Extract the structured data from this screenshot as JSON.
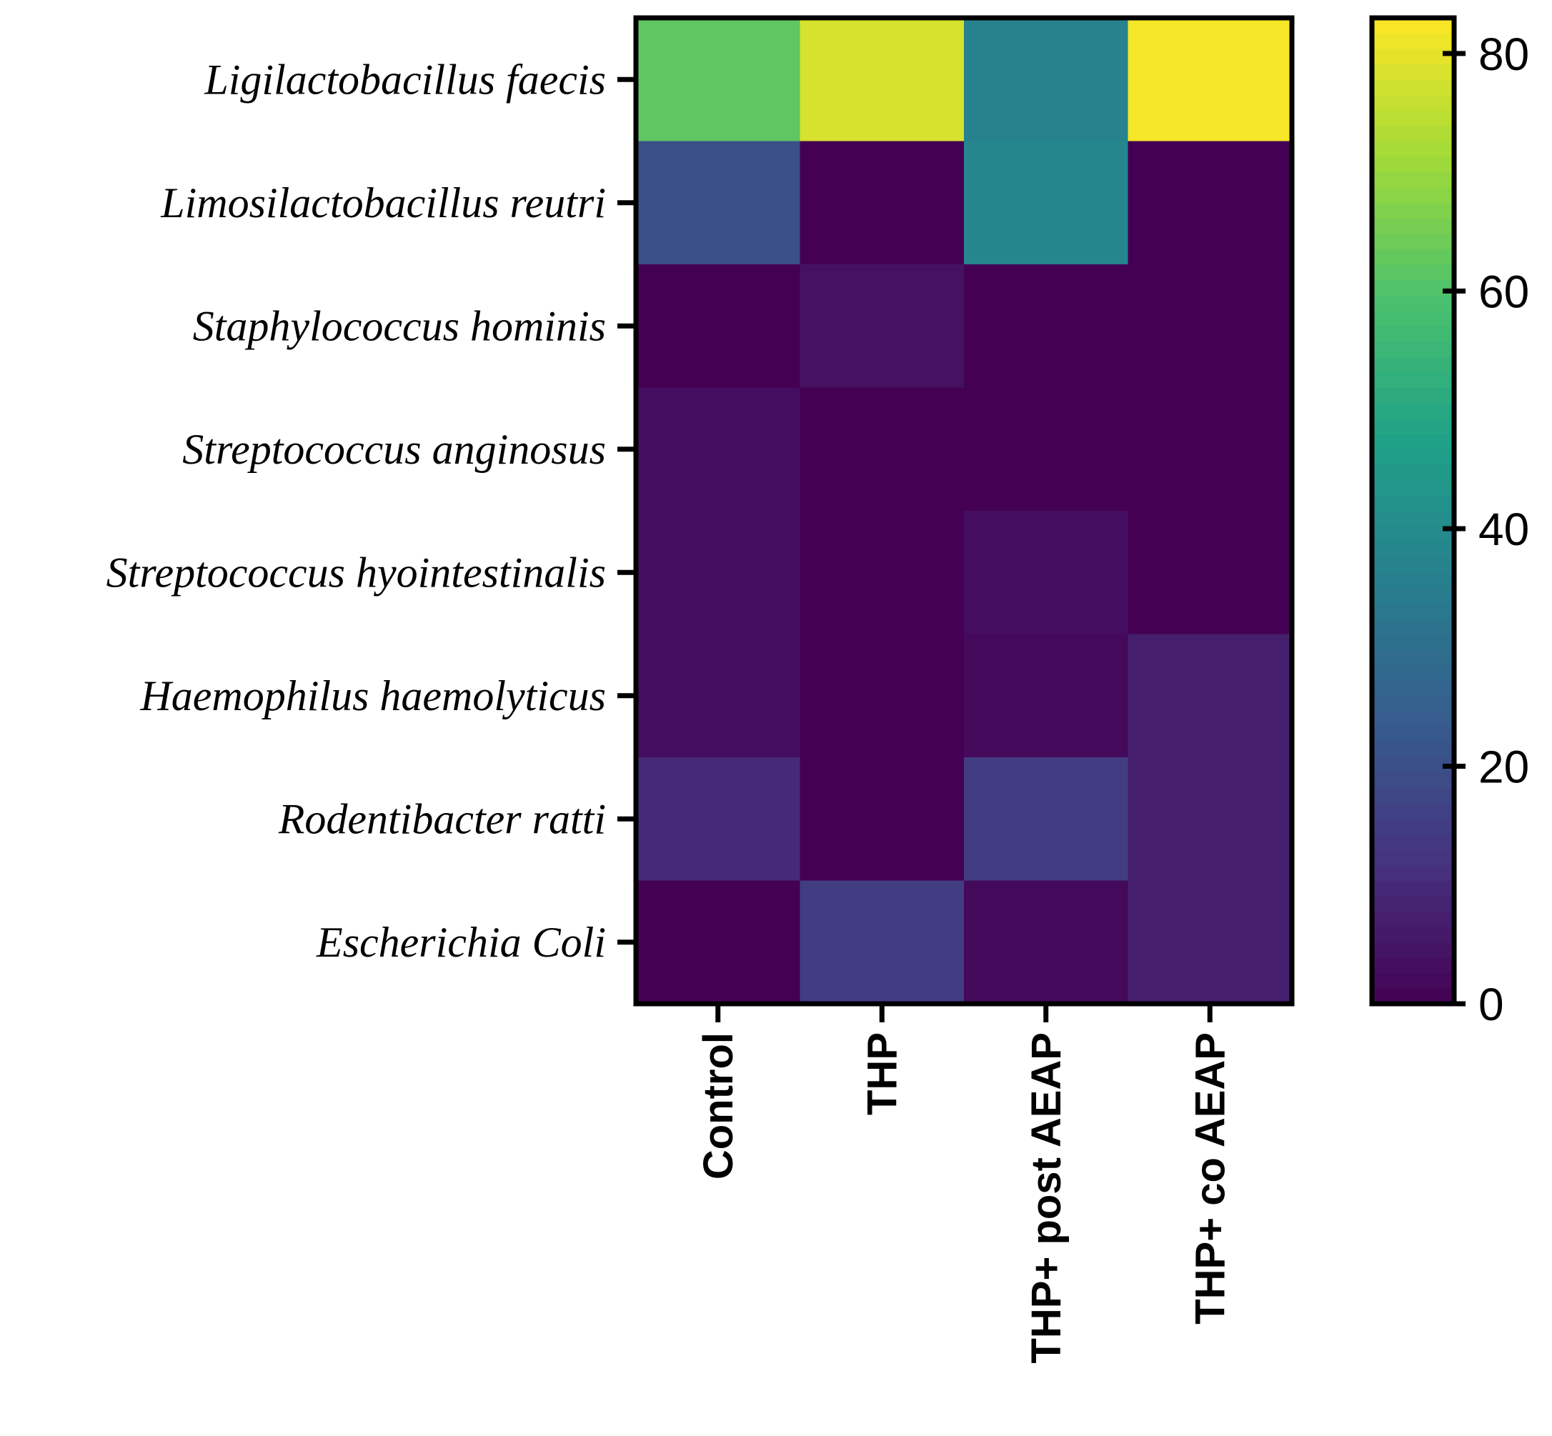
{
  "chart_data": {
    "type": "heatmap",
    "title": "",
    "rows": [
      "Ligilactobacillus faecis",
      "Limosilactobacillus reutri",
      "Staphylococcus hominis",
      "Streptococcus anginosus",
      "Streptococcus hyointestinalis",
      "Haemophilus haemolyticus",
      "Rodentibacter ratti",
      "Escherichia Coli"
    ],
    "columns": [
      "Control",
      "THP",
      "THP+ post AEAP",
      "THP+ co AEAP"
    ],
    "values": [
      [
        62,
        78,
        37,
        82
      ],
      [
        20,
        0,
        38,
        0
      ],
      [
        0,
        4,
        0,
        0
      ],
      [
        3,
        0,
        0,
        0
      ],
      [
        3,
        0,
        3,
        0
      ],
      [
        3,
        0,
        2,
        7
      ],
      [
        10,
        0,
        15,
        7
      ],
      [
        0,
        15,
        2,
        7
      ]
    ],
    "colorbar": {
      "min": 0,
      "max": 83,
      "ticks": [
        0,
        20,
        40,
        60,
        80
      ],
      "colormap": "viridis",
      "colors": [
        "#440154",
        "#46327e",
        "#365c8d",
        "#277f8e",
        "#1fa187",
        "#4ac16d",
        "#a0da39",
        "#fde725"
      ]
    }
  }
}
